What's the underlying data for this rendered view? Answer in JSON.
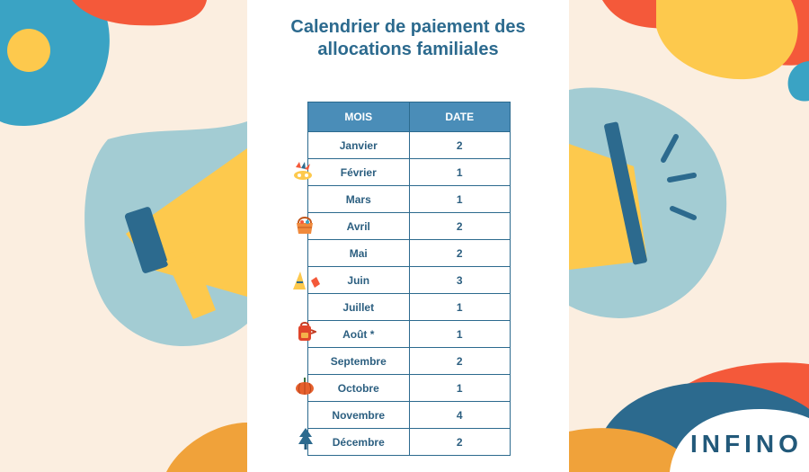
{
  "title": {
    "line1": "Calendrier de paiement des",
    "line2": "allocations familiales"
  },
  "table": {
    "headers": {
      "month": "MOIS",
      "date": "DATE"
    },
    "rows": [
      {
        "month": "Janvier",
        "date": "2"
      },
      {
        "month": "Février",
        "date": "1"
      },
      {
        "month": "Mars",
        "date": "1"
      },
      {
        "month": "Avril",
        "date": "2"
      },
      {
        "month": "Mai",
        "date": "2"
      },
      {
        "month": "Juin",
        "date": "3"
      },
      {
        "month": "Juillet",
        "date": "1"
      },
      {
        "month": "Août *",
        "date": "1"
      },
      {
        "month": "Septembre",
        "date": "2"
      },
      {
        "month": "Octobre",
        "date": "1"
      },
      {
        "month": "Novembre",
        "date": "4"
      },
      {
        "month": "Décembre",
        "date": "2"
      }
    ]
  },
  "icons": [
    "carnival-mask-icon",
    "easter-basket-icon",
    "summer-sandwich-board-icon",
    "backpack-icon",
    "pumpkin-icon",
    "christmas-tree-icon",
    "megaphone-icon"
  ],
  "brand": {
    "logo": "INFINO"
  },
  "colors": {
    "background": "#fbeee0",
    "title": "#2c6a8e",
    "header": "#4a8db8",
    "blob_blue": "#3aa3c4",
    "blob_yellow": "#fdc94d",
    "blob_red": "#f4593a",
    "blob_teal": "#a3ccd3",
    "blob_orange": "#f0a23a"
  }
}
